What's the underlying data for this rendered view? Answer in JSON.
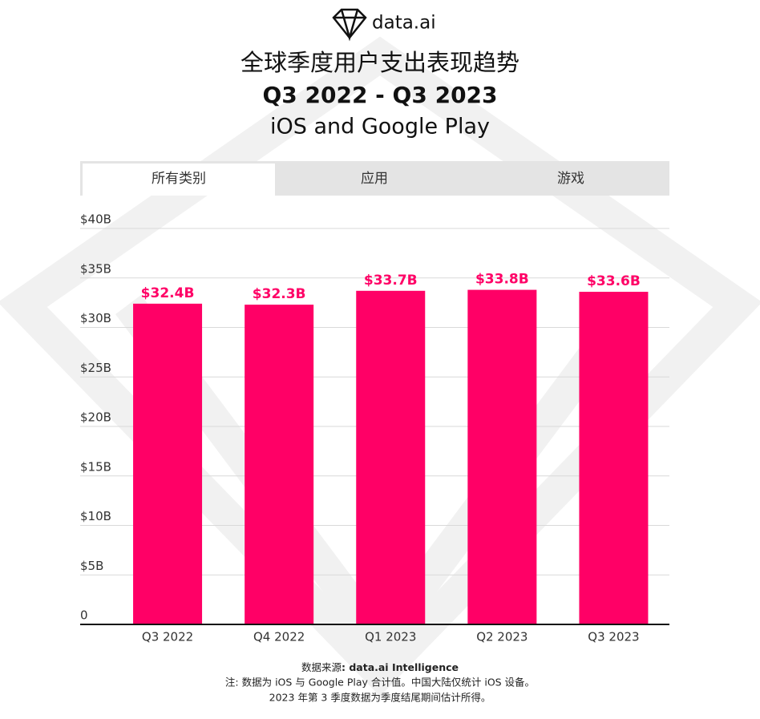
{
  "header": {
    "logo": "data.ai",
    "title": "全球季度用户支出表现趋势",
    "subtitle": "Q3 2022 - Q3 2023",
    "platforms": "iOS and Google Play"
  },
  "tabs": [
    "所有类别",
    "应用",
    "游戏"
  ],
  "chart_data": {
    "type": "bar",
    "categories": [
      "Q3 2022",
      "Q4 2022",
      "Q1 2023",
      "Q2 2023",
      "Q3 2023"
    ],
    "values": [
      32.4,
      32.3,
      33.7,
      33.8,
      33.6
    ],
    "value_labels": [
      "$32.4B",
      "$32.3B",
      "$33.7B",
      "$33.8B",
      "$33.6B"
    ],
    "color": "#ff0066",
    "ylim": [
      0,
      40
    ],
    "yticks": [
      0,
      {
        "value": 5,
        "label": "$5B"
      },
      {
        "value": 10,
        "label": "$10B"
      },
      {
        "value": 15,
        "label": "$15B"
      },
      {
        "value": 20,
        "label": "$20B"
      },
      {
        "value": 25,
        "label": "$25B"
      },
      {
        "value": 30,
        "label": "$30B"
      },
      {
        "value": 35,
        "label": "$35B"
      },
      {
        "value": 40,
        "label": "$40B"
      }
    ],
    "grid": true
  },
  "footer": {
    "source_label": "数据来源",
    "source": ": data.ai Intelligence",
    "notes": [
      "注: 数据为 iOS 与 Google Play 合计值。中国大陆仅统计 iOS 设备。",
      "2023 年第 3 季度数据为季度结尾期间估计所得。"
    ]
  }
}
